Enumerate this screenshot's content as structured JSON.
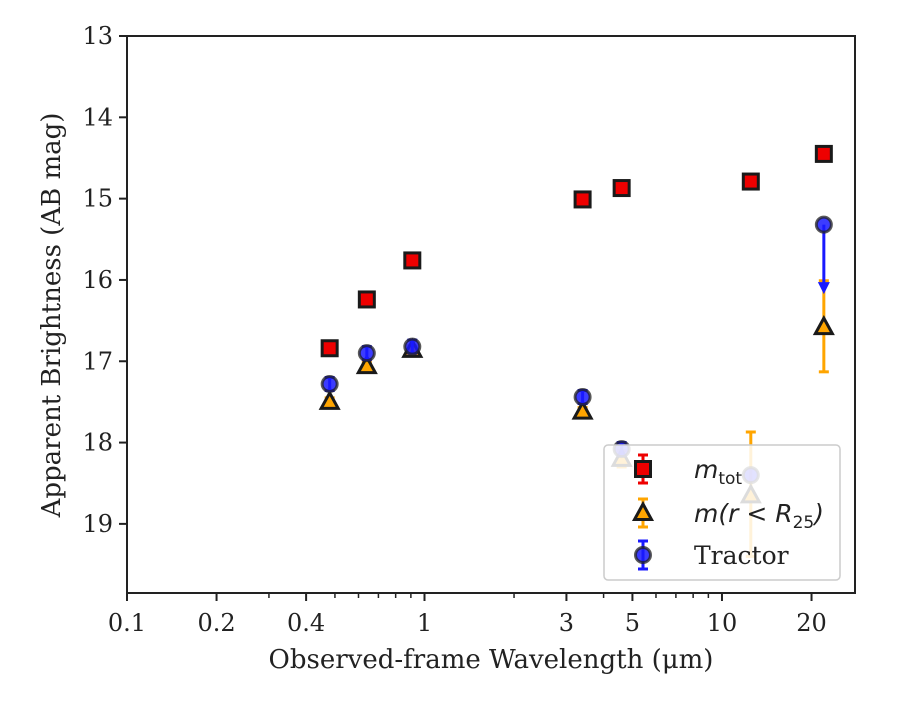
{
  "chart_data": {
    "type": "scatter",
    "xlabel": "Observed-frame Wavelength (μm)",
    "ylabel": "Apparent Brightness (AB mag)",
    "x_scale": "log",
    "xlim": [
      0.1,
      28
    ],
    "ylim": [
      19.85,
      13.0
    ],
    "y_inverted": true,
    "x_tick_values": [
      0.1,
      0.2,
      0.4,
      1,
      3,
      5,
      10,
      20
    ],
    "x_tick_labels": [
      "0.1",
      "0.2",
      "0.4",
      "1",
      "3",
      "5",
      "10",
      "20"
    ],
    "y_tick_values": [
      13,
      14,
      15,
      16,
      17,
      18,
      19
    ],
    "y_tick_labels": [
      "13",
      "14",
      "15",
      "16",
      "17",
      "18",
      "19"
    ],
    "grid": false,
    "legend_position": "lower-right",
    "series": [
      {
        "name": "m_tot",
        "marker": "square",
        "color": "#ee0000",
        "error_color": "#ee0000",
        "legend": {
          "main": "m",
          "sub": "tot",
          "rest": ""
        },
        "points": [
          {
            "x": 0.48,
            "y": 16.84
          },
          {
            "x": 0.64,
            "y": 16.24
          },
          {
            "x": 0.91,
            "y": 15.76
          },
          {
            "x": 3.4,
            "y": 15.01
          },
          {
            "x": 4.6,
            "y": 14.87
          },
          {
            "x": 12.5,
            "y": 14.79
          },
          {
            "x": 22.0,
            "y": 14.45
          }
        ]
      },
      {
        "name": "m(r < R25)",
        "marker": "triangle",
        "color": "#ffa500",
        "error_color": "#ffa500",
        "legend": {
          "main": "m(r < R",
          "sub": "25",
          "rest": ")"
        },
        "points": [
          {
            "x": 0.48,
            "y": 17.5,
            "err": 0.05
          },
          {
            "x": 0.64,
            "y": 17.06,
            "err": 0.05
          },
          {
            "x": 0.91,
            "y": 16.86,
            "err": 0.05
          },
          {
            "x": 3.4,
            "y": 17.62,
            "err": 0.05
          },
          {
            "x": 4.6,
            "y": 18.2,
            "err": 0.1
          },
          {
            "x": 12.5,
            "y": 18.65,
            "err_low": 0.78,
            "err_high": 0.75
          },
          {
            "x": 22.0,
            "y": 16.58,
            "err_low": 0.57,
            "err_high": 0.55
          }
        ]
      },
      {
        "name": "Tractor",
        "marker": "circle",
        "color": "#1a1aff",
        "error_color": "#1a1aff",
        "legend": {
          "main": "Tractor",
          "sub": "",
          "rest": ""
        },
        "points": [
          {
            "x": 0.48,
            "y": 17.28,
            "err": 0.08
          },
          {
            "x": 0.64,
            "y": 16.9,
            "err": 0.08
          },
          {
            "x": 0.91,
            "y": 16.82,
            "err": 0.08
          },
          {
            "x": 3.4,
            "y": 17.44,
            "err": 0.08
          },
          {
            "x": 4.6,
            "y": 18.08,
            "err": 0.08
          },
          {
            "x": 12.5,
            "y": 18.4
          },
          {
            "x": 22.0,
            "y": 15.32,
            "upper_limit": true,
            "limit_to": 16.15
          }
        ]
      }
    ]
  }
}
